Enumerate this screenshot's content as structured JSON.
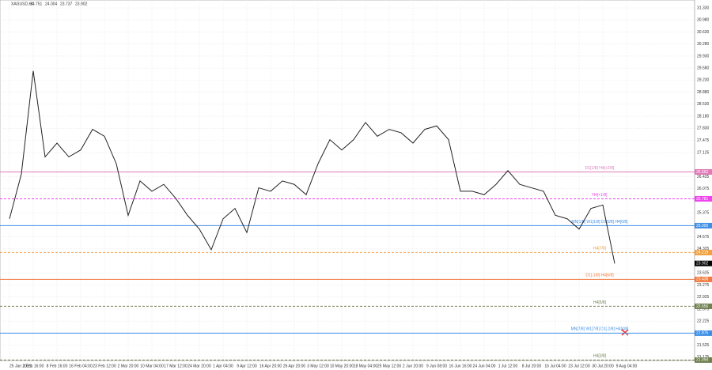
{
  "chart_data": {
    "type": "line",
    "title": "XAGUSD,H4",
    "ohlc": [
      23.751,
      24.004,
      23.737,
      23.902
    ],
    "categories": [
      "25 Jan 2021",
      null,
      "1 Feb 16:00",
      null,
      "8 Feb 16:00",
      null,
      "16 Feb 04:00",
      null,
      "23 Feb 12:00",
      null,
      "2 Mar 20:00",
      null,
      "10 Mar 04:00",
      null,
      "17 Mar 12:00",
      null,
      "24 Mar 20:00",
      null,
      "1 Apr 04:00",
      null,
      "9 Apr 12:00",
      null,
      "16 Apr 20:00",
      null,
      "26 Apr 20:00",
      null,
      "3 May 12:00",
      null,
      "10 May 20:00",
      null,
      "18 May 04:00",
      null,
      "25 May 12:00",
      null,
      "2 Jun 20:00",
      null,
      "9 Jun 08:00",
      null,
      "16 Jun 16:00",
      null,
      "24 Jun 04:00",
      null,
      "1 Jul 12:00",
      null,
      "8 Jul 20:00",
      null,
      "16 Jul 04:00",
      null,
      "23 Jul 12:00",
      null,
      "30 Jul 20:00",
      null,
      "9 Aug 04:00"
    ],
    "values": [
      25.2,
      26.5,
      29.5,
      27.0,
      27.4,
      27.0,
      27.2,
      27.8,
      27.6,
      26.8,
      25.3,
      26.3,
      26.0,
      26.2,
      25.8,
      25.3,
      24.9,
      24.3,
      25.2,
      25.5,
      24.8,
      26.1,
      26.0,
      26.3,
      26.2,
      25.9,
      26.8,
      27.5,
      27.2,
      27.5,
      28.0,
      27.6,
      27.8,
      27.7,
      27.4,
      27.8,
      27.9,
      27.5,
      26.0,
      26.0,
      25.9,
      26.2,
      26.6,
      26.2,
      26.1,
      26.0,
      25.3,
      25.2,
      24.9,
      25.5,
      25.6,
      23.9,
      null
    ],
    "color": "#222222",
    "ylim": [
      21.08,
      31.56
    ],
    "yticks": [
      {
        "value": 31.33,
        "label": "31.330"
      },
      {
        "value": 30.98,
        "label": "30.980"
      },
      {
        "value": 30.63,
        "label": "30.630"
      },
      {
        "value": 30.28,
        "label": "30.280"
      },
      {
        "value": 29.93,
        "label": "29.930"
      },
      {
        "value": 29.58,
        "label": "29.580"
      },
      {
        "value": 29.23,
        "label": "29.230"
      },
      {
        "value": 28.88,
        "label": "28.880"
      },
      {
        "value": 28.53,
        "label": "28.530"
      },
      {
        "value": 28.18,
        "label": "28.180"
      },
      {
        "value": 27.83,
        "label": "27.830"
      },
      27.475,
      27.125,
      26.425,
      26.075,
      25.375,
      24.675,
      24.325,
      23.625,
      23.275,
      22.925,
      22.575,
      22.225,
      21.525,
      21.175
    ],
    "grid": true,
    "levels": [
      {
        "label": "D1[1/8] H4[+2/8]",
        "value": 26.562,
        "value_label": "26.562",
        "color": "#e07ab8",
        "dashed": false
      },
      {
        "label": "H4[+1/8]",
        "value": 25.781,
        "value_label": "25.781",
        "color": "#ee44ee",
        "dashed": true
      },
      {
        "label": "MN[1/8] W1[1/8] D1[0/8] H4[0/8]",
        "value": 25,
        "value_label": "25.000",
        "color": "#3d8ee6",
        "dashed": false
      },
      {
        "label": "H4[7/8]",
        "value": 24.219,
        "value_label": "24.219",
        "color": "#f0a040",
        "dashed": true
      },
      {
        "label": "D1[-1/8] H4[6/8]",
        "value": 23.438,
        "value_label": "23.438",
        "color": "#f07a40",
        "dashed": false
      },
      {
        "label": "H4[5/8]",
        "value": 22.656,
        "value_label": "22.656",
        "color": "#708050",
        "dashed": true
      },
      {
        "label": "MN[7/8] W1[7/8] D1[-2/8] H4[4/8]",
        "value": 21.875,
        "value_label": "21.875",
        "color": "#3d8ee6",
        "dashed": false
      },
      {
        "label": "H4[3/8]",
        "value": 21.094,
        "value_label": "21.094",
        "color": "#708050",
        "dashed": true
      }
    ]
  }
}
